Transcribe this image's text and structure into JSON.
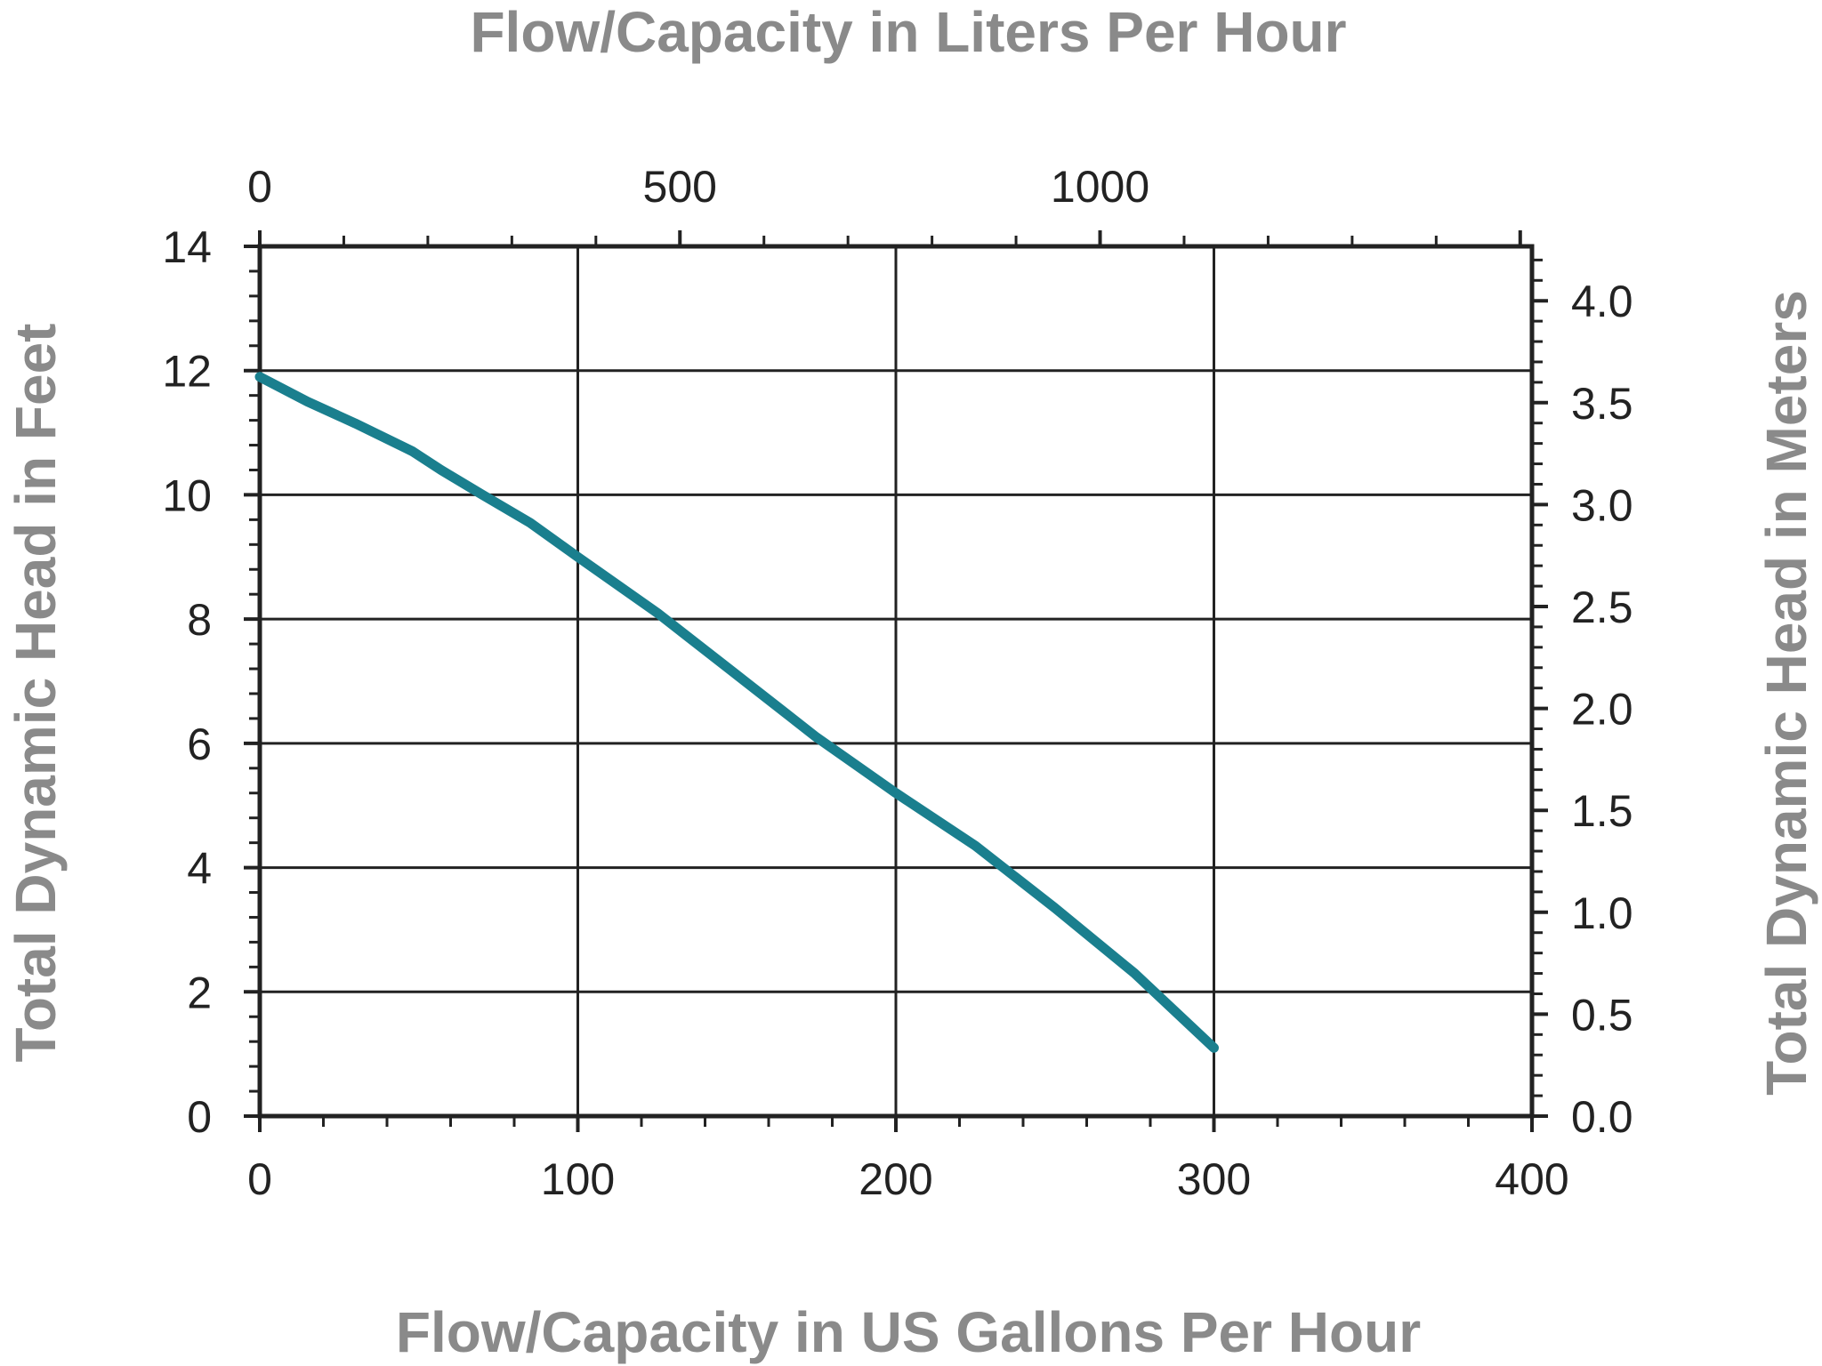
{
  "chart_data": {
    "type": "line",
    "title": "",
    "xlabel": "Flow/Capacity in US Gallons Per Hour",
    "ylabel": "Total Dynamic Head in Feet",
    "x2label": "Flow/Capacity in Liters Per Hour",
    "y2label": "Total Dynamic Head in Meters",
    "xlim": [
      0,
      400
    ],
    "ylim": [
      0,
      14
    ],
    "x2lim": [
      0,
      1514
    ],
    "y2lim": [
      0,
      4.267
    ],
    "x_ticks": [
      "0",
      "100",
      "200",
      "300",
      "400"
    ],
    "y_ticks": [
      "0",
      "2",
      "4",
      "6",
      "8",
      "10",
      "12",
      "14"
    ],
    "x2_ticks": [
      "0",
      "500",
      "1000"
    ],
    "y2_ticks": [
      "0.0",
      "0.5",
      "1.0",
      "1.5",
      "2.0",
      "2.5",
      "3.0",
      "3.5",
      "4.0"
    ],
    "grid": true,
    "legend": "none",
    "series": [
      {
        "color": "#1a7f8e",
        "x": [
          0,
          15,
          30,
          48,
          57,
          70,
          85,
          100,
          125,
          150,
          175,
          200,
          225,
          250,
          275,
          300
        ],
        "y": [
          11.9,
          11.5,
          11.15,
          10.7,
          10.4,
          10.0,
          9.55,
          9.0,
          8.1,
          7.1,
          6.1,
          5.2,
          4.35,
          3.35,
          2.3,
          1.1
        ]
      }
    ]
  }
}
